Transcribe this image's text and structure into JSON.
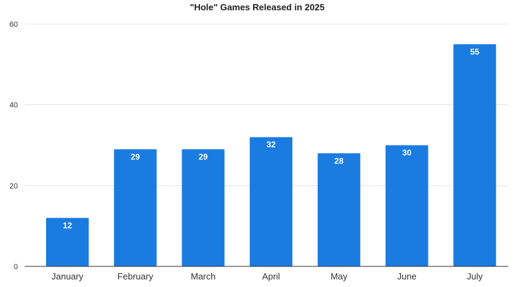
{
  "chart_data": {
    "type": "bar",
    "title": "\"Hole\" Games Released in 2025",
    "xlabel": "",
    "ylabel": "",
    "categories": [
      "January",
      "February",
      "March",
      "April",
      "May",
      "June",
      "July"
    ],
    "values": [
      12,
      29,
      29,
      32,
      28,
      30,
      55
    ],
    "ylim": [
      0,
      60
    ],
    "yticks": [
      0,
      20,
      40,
      60
    ],
    "grid": true,
    "legend": "none",
    "data_labels": true,
    "bar_color": "#1a7be0"
  }
}
